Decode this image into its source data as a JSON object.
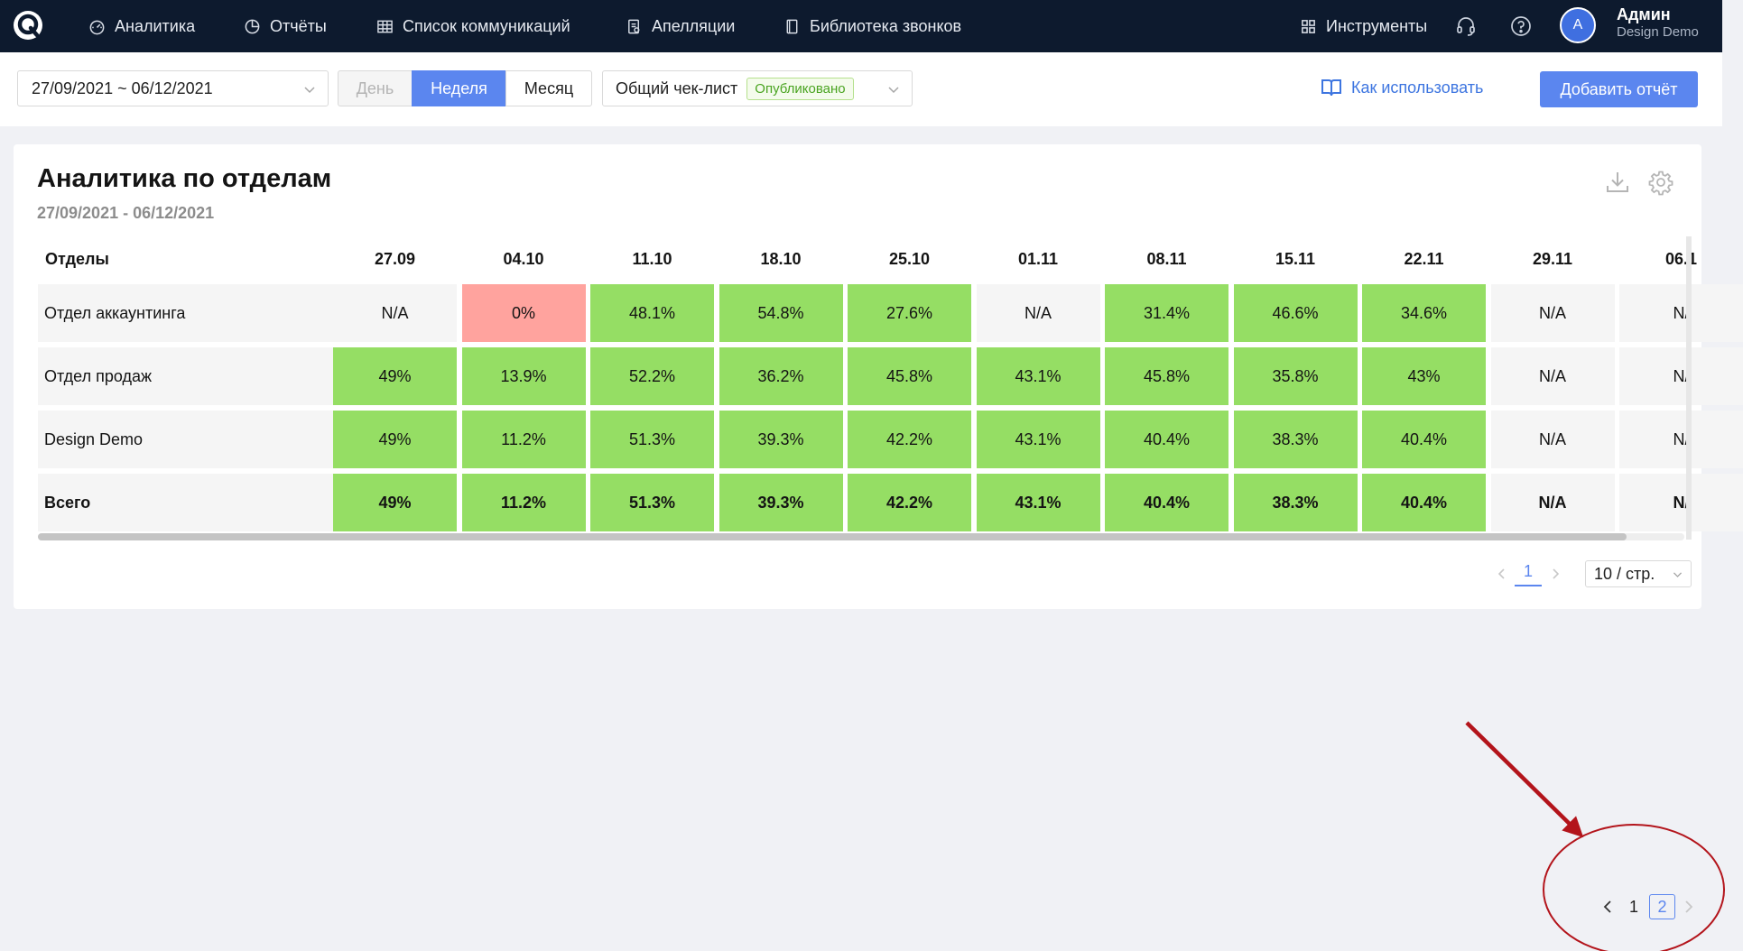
{
  "nav": {
    "items": [
      {
        "label": "Аналитика",
        "icon": "gauge-icon"
      },
      {
        "label": "Отчёты",
        "icon": "pie-chart-icon"
      },
      {
        "label": "Список коммуникаций",
        "icon": "table-icon"
      },
      {
        "label": "Апелляции",
        "icon": "appeal-document-icon"
      },
      {
        "label": "Библиотека звонков",
        "icon": "book-icon"
      }
    ],
    "tools_label": "Инструменты",
    "user": {
      "initial": "A",
      "name": "Админ",
      "company": "Design Demo"
    }
  },
  "toolbar": {
    "date_range": "27/09/2021 ~ 06/12/2021",
    "periods": {
      "day": "День",
      "week": "Неделя",
      "month": "Месяц",
      "selected": "Неделя"
    },
    "checklist": {
      "label": "Общий чек-лист",
      "status": "Опубликовано"
    },
    "howto_label": "Как использовать",
    "add_report_label": "Добавить отчёт"
  },
  "report": {
    "title": "Аналитика по отделам",
    "subtitle": "27/09/2021 - 06/12/2021",
    "column_header": "Отделы",
    "weeks": [
      "27.09",
      "04.10",
      "11.10",
      "18.10",
      "25.10",
      "01.11",
      "08.11",
      "15.11",
      "22.11",
      "29.11",
      "06.1"
    ],
    "rows": [
      {
        "label": "Отдел аккаунтинга",
        "bold": false,
        "cells": [
          {
            "v": "N/A",
            "s": "na"
          },
          {
            "v": "0%",
            "s": "bad"
          },
          {
            "v": "48.1%",
            "s": "good"
          },
          {
            "v": "54.8%",
            "s": "good"
          },
          {
            "v": "27.6%",
            "s": "good"
          },
          {
            "v": "N/A",
            "s": "na"
          },
          {
            "v": "31.4%",
            "s": "good"
          },
          {
            "v": "46.6%",
            "s": "good"
          },
          {
            "v": "34.6%",
            "s": "good"
          },
          {
            "v": "N/A",
            "s": "na"
          },
          {
            "v": "N/",
            "s": "na"
          }
        ]
      },
      {
        "label": "Отдел продаж",
        "bold": false,
        "cells": [
          {
            "v": "49%",
            "s": "good"
          },
          {
            "v": "13.9%",
            "s": "good"
          },
          {
            "v": "52.2%",
            "s": "good"
          },
          {
            "v": "36.2%",
            "s": "good"
          },
          {
            "v": "45.8%",
            "s": "good"
          },
          {
            "v": "43.1%",
            "s": "good"
          },
          {
            "v": "45.8%",
            "s": "good"
          },
          {
            "v": "35.8%",
            "s": "good"
          },
          {
            "v": "43%",
            "s": "good"
          },
          {
            "v": "N/A",
            "s": "na"
          },
          {
            "v": "N/",
            "s": "na"
          }
        ]
      },
      {
        "label": "Design Demo",
        "bold": false,
        "cells": [
          {
            "v": "49%",
            "s": "good"
          },
          {
            "v": "11.2%",
            "s": "good"
          },
          {
            "v": "51.3%",
            "s": "good"
          },
          {
            "v": "39.3%",
            "s": "good"
          },
          {
            "v": "42.2%",
            "s": "good"
          },
          {
            "v": "43.1%",
            "s": "good"
          },
          {
            "v": "40.4%",
            "s": "good"
          },
          {
            "v": "38.3%",
            "s": "good"
          },
          {
            "v": "40.4%",
            "s": "good"
          },
          {
            "v": "N/A",
            "s": "na"
          },
          {
            "v": "N/",
            "s": "na"
          }
        ]
      },
      {
        "label": "Всего",
        "bold": true,
        "cells": [
          {
            "v": "49%",
            "s": "good"
          },
          {
            "v": "11.2%",
            "s": "good"
          },
          {
            "v": "51.3%",
            "s": "good"
          },
          {
            "v": "39.3%",
            "s": "good"
          },
          {
            "v": "42.2%",
            "s": "good"
          },
          {
            "v": "43.1%",
            "s": "good"
          },
          {
            "v": "40.4%",
            "s": "good"
          },
          {
            "v": "38.3%",
            "s": "good"
          },
          {
            "v": "40.4%",
            "s": "good"
          },
          {
            "v": "N/A",
            "s": "na"
          },
          {
            "v": "N/",
            "s": "na"
          }
        ]
      }
    ],
    "pagination": {
      "page": "1",
      "page_size": "10 / стр."
    }
  },
  "bottom_pagination": {
    "pages": [
      "1",
      "2"
    ],
    "current": "2"
  },
  "colors": {
    "good": "#95de64",
    "bad": "#ffa39e",
    "na": "#f5f5f5",
    "accent": "#5b86ef",
    "annotation": "#b3141b"
  }
}
